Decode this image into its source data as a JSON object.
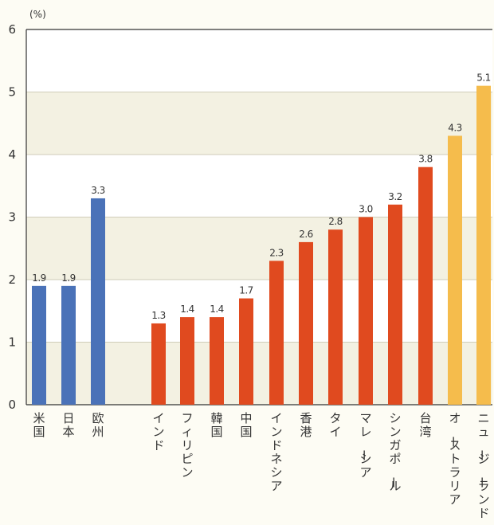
{
  "chart_data": {
    "type": "bar",
    "unit_label": "(%)",
    "ylim": [
      0,
      6
    ],
    "yticks": [
      0,
      1,
      2,
      3,
      4,
      5,
      6
    ],
    "grid": true,
    "categories": [
      "米国",
      "日本",
      "欧州",
      "インド",
      "フィリピン",
      "韓国",
      "中国",
      "インドネシア",
      "香港",
      "タイ",
      "マレーシア",
      "シンガポール",
      "台湾",
      "オーストラリア",
      "ニュージーランド"
    ],
    "values": [
      1.9,
      1.9,
      3.3,
      1.3,
      1.4,
      1.4,
      1.7,
      2.3,
      2.6,
      2.8,
      3.0,
      3.2,
      3.8,
      4.3,
      5.1
    ],
    "value_labels": [
      "1.9",
      "1.9",
      "3.3",
      "1.3",
      "1.4",
      "1.4",
      "1.7",
      "2.3",
      "2.6",
      "2.8",
      "3.0",
      "3.2",
      "3.8",
      "4.3",
      "5.1"
    ],
    "bar_colors": [
      "#4a72b8",
      "#4a72b8",
      "#4a72b8",
      "#e04a1f",
      "#e04a1f",
      "#e04a1f",
      "#e04a1f",
      "#e04a1f",
      "#e04a1f",
      "#e04a1f",
      "#e04a1f",
      "#e04a1f",
      "#e04a1f",
      "#f5bc4c",
      "#f5bc4c"
    ],
    "band_colors": [
      "#f3f1e2",
      "#ffffff"
    ]
  }
}
